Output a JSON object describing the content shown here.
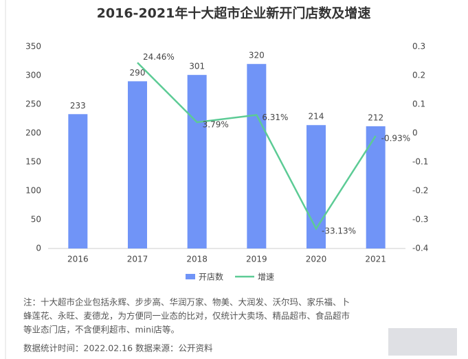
{
  "chart_data": {
    "type": "bar_line",
    "title": "2016-2021年十大超市企业新开门店数及增速",
    "categories": [
      "2016",
      "2017",
      "2018",
      "2019",
      "2020",
      "2021"
    ],
    "series": [
      {
        "name": "开店数",
        "type": "bar",
        "color": "#7094f7",
        "values": [
          233,
          290,
          301,
          320,
          214,
          212
        ]
      },
      {
        "name": "增速",
        "type": "line",
        "axis": "y2",
        "color": "#5ccb95",
        "values": [
          null,
          0.2446,
          0.0379,
          0.0631,
          -0.3313,
          -0.0093
        ],
        "value_labels": [
          null,
          "24.46%",
          "3.79%",
          "6.31%",
          "-33.13%",
          "-0.93%"
        ]
      }
    ],
    "ylim": [
      0,
      350
    ],
    "yticks": [
      0,
      50,
      100,
      150,
      200,
      250,
      300,
      350
    ],
    "y2lim": [
      -0.4,
      0.3
    ],
    "y2ticks": [
      -0.4,
      -0.3,
      -0.2,
      -0.1,
      0,
      0.1,
      0.2,
      0.3
    ],
    "legend": "bottom",
    "notes": [
      "注：十大超市企业包括永辉、步步高、华润万家、物美、大润发、沃尔玛、家乐福、卜",
      "蜂莲花、永旺、麦德龙，为方便同一业态的比对，仅统计大卖场、精品超市、食品超市",
      "等业态门店，不含便利超市、mini店等。"
    ],
    "source": "数据统计时间：2022.02.16   数据来源：公开资料"
  }
}
